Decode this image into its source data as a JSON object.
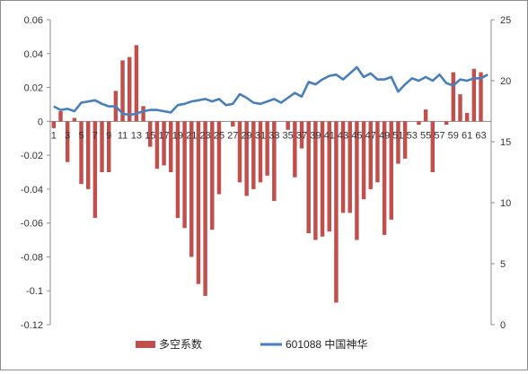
{
  "chart_data": {
    "type": "bar+line",
    "title": "",
    "categories": [
      1,
      2,
      3,
      4,
      5,
      6,
      7,
      8,
      9,
      10,
      11,
      12,
      13,
      14,
      15,
      16,
      17,
      18,
      19,
      20,
      21,
      22,
      23,
      24,
      25,
      26,
      27,
      28,
      29,
      30,
      31,
      32,
      33,
      34,
      35,
      36,
      37,
      38,
      39,
      40,
      41,
      42,
      43,
      44,
      45,
      46,
      47,
      48,
      49,
      50,
      51,
      52,
      53,
      54,
      55,
      56,
      57,
      58,
      59,
      60,
      61,
      62,
      63,
      64
    ],
    "x_tick_labels": [
      "1",
      "3",
      "5",
      "7",
      "9",
      "11",
      "13",
      "15",
      "17",
      "19",
      "21",
      "23",
      "25",
      "27",
      "29",
      "31",
      "33",
      "35",
      "37",
      "39",
      "41",
      "43",
      "45",
      "47",
      "49",
      "51",
      "53",
      "55",
      "57",
      "59",
      "61",
      "63"
    ],
    "series": [
      {
        "name": "多空系数",
        "type": "bar",
        "axis": "left",
        "color": "#c0504d",
        "values": [
          -0.004,
          0.006,
          -0.024,
          0.002,
          -0.037,
          -0.04,
          -0.057,
          -0.03,
          -0.03,
          0.018,
          0.036,
          0.038,
          0.045,
          0.009,
          -0.015,
          -0.028,
          -0.026,
          -0.03,
          -0.057,
          -0.063,
          -0.08,
          -0.096,
          -0.103,
          -0.064,
          -0.043,
          0,
          -0.003,
          -0.036,
          -0.044,
          -0.04,
          -0.036,
          -0.032,
          -0.047,
          0,
          -0.005,
          -0.033,
          -0.016,
          -0.066,
          -0.07,
          -0.068,
          -0.065,
          -0.107,
          -0.054,
          -0.054,
          -0.07,
          -0.046,
          -0.04,
          -0.036,
          -0.067,
          -0.058,
          -0.025,
          -0.022,
          0,
          -0.002,
          0.007,
          -0.03,
          0,
          -0.002,
          0.029,
          0.016,
          0.005,
          0.031,
          0.029,
          0
        ]
      },
      {
        "name": "601088 中国神华",
        "type": "line",
        "axis": "right",
        "color": "#4a7ebb",
        "values": [
          17.9,
          17.6,
          17.7,
          17.5,
          18.2,
          18.3,
          18.4,
          18.1,
          17.9,
          17.9,
          17.3,
          17.2,
          17.3,
          17.5,
          17.6,
          17.6,
          17.5,
          17.4,
          18.0,
          18.1,
          18.3,
          18.4,
          18.5,
          18.3,
          18.5,
          18.0,
          18.1,
          18.9,
          18.6,
          18.2,
          18.1,
          18.3,
          18.5,
          18.2,
          18.6,
          19.0,
          18.7,
          19.9,
          19.7,
          20.1,
          20.4,
          20.5,
          20.1,
          20.6,
          21.1,
          20.3,
          20.6,
          20.1,
          20.1,
          20.3,
          19.1,
          19.7,
          20.2,
          20.0,
          20.3,
          20.0,
          20.5,
          19.8,
          19.6,
          20.1,
          20.0,
          20.2,
          20.2,
          20.5
        ]
      }
    ],
    "y_left": {
      "min": -0.12,
      "max": 0.06,
      "ticks": [
        "0.06",
        "0.04",
        "0.02",
        "0",
        "-0.02",
        "-0.04",
        "-0.06",
        "-0.08",
        "-0.1",
        "-0.12"
      ]
    },
    "y_right": {
      "min": 0,
      "max": 25,
      "ticks": [
        "25",
        "20",
        "15",
        "10",
        "5",
        "0"
      ]
    },
    "grid": false,
    "legend_position": "bottom"
  },
  "legend": {
    "bar_label": "多空系数",
    "line_label": "601088 中国神华"
  }
}
